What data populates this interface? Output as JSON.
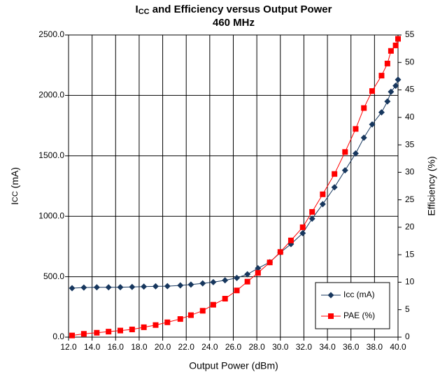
{
  "chart_data": {
    "type": "line",
    "title": {
      "main": "I",
      "subscript": "CC",
      "rest": " and Efficiency versus Output Power"
    },
    "subtitle": "460 MHz",
    "x_label": "Output Power (dBm)",
    "y_label": {
      "main": "I",
      "subscript": "CC",
      "rest": " (mA)"
    },
    "y2_label": "Efficiency (%)",
    "x": [
      12.3,
      13.3,
      14.4,
      15.4,
      16.4,
      17.4,
      18.4,
      19.4,
      20.4,
      21.5,
      22.4,
      23.4,
      24.3,
      25.3,
      26.3,
      27.2,
      28.1,
      29.1,
      30.0,
      30.9,
      31.9,
      32.7,
      33.6,
      34.6,
      35.5,
      36.4,
      37.1,
      37.8,
      38.6,
      39.1,
      39.4,
      39.8,
      40.0
    ],
    "series": [
      {
        "name": "Icc (mA)",
        "color": "#17375e",
        "marker": "diamond",
        "values": [
          405,
          410,
          412,
          412,
          413,
          415,
          418,
          420,
          422,
          428,
          435,
          445,
          455,
          470,
          490,
          520,
          570,
          620,
          700,
          770,
          860,
          980,
          1100,
          1240,
          1380,
          1520,
          1650,
          1760,
          1860,
          1950,
          2030,
          2080,
          2130
        ]
      },
      {
        "name": "PAE (%)",
        "color": "#ff0000",
        "marker": "square",
        "axis": "y2",
        "values": [
          0.3,
          0.6,
          0.8,
          1.0,
          1.2,
          1.4,
          1.8,
          2.2,
          2.7,
          3.3,
          4.0,
          4.8,
          5.9,
          7.0,
          8.5,
          10.1,
          11.7,
          13.6,
          15.5,
          17.6,
          20.0,
          22.8,
          26.0,
          29.7,
          33.7,
          37.9,
          41.7,
          44.8,
          47.6,
          49.8,
          52.1,
          53.1,
          54.3
        ]
      }
    ],
    "xlim": [
      12,
      40
    ],
    "xticks": [
      {
        "value": 12,
        "label": "12.0"
      },
      {
        "value": 14,
        "label": "14.0"
      },
      {
        "value": 16,
        "label": "16.0"
      },
      {
        "value": 18,
        "label": "18.0"
      },
      {
        "value": 20,
        "label": "20.0"
      },
      {
        "value": 22,
        "label": "22.0"
      },
      {
        "value": 24,
        "label": "24.0"
      },
      {
        "value": 26,
        "label": "26.0"
      },
      {
        "value": 28,
        "label": "28.0"
      },
      {
        "value": 30,
        "label": "30.0"
      },
      {
        "value": 32,
        "label": "32.0"
      },
      {
        "value": 34,
        "label": "34.0"
      },
      {
        "value": 36,
        "label": "36.0"
      },
      {
        "value": 38,
        "label": "38.0"
      },
      {
        "value": 40,
        "label": "40.0"
      }
    ],
    "ylim": [
      0,
      2500
    ],
    "yticks": [
      {
        "value": 0,
        "label": "0.0"
      },
      {
        "value": 500,
        "label": "500.0"
      },
      {
        "value": 1000,
        "label": "1000.0"
      },
      {
        "value": 1500,
        "label": "1500.0"
      },
      {
        "value": 2000,
        "label": "2000.0"
      },
      {
        "value": 2500,
        "label": "2500.0"
      }
    ],
    "y2lim": [
      0,
      55
    ],
    "y2ticks": [
      0,
      5,
      10,
      15,
      20,
      25,
      30,
      35,
      40,
      45,
      50,
      55
    ],
    "grid": true,
    "legend": "lower right"
  }
}
